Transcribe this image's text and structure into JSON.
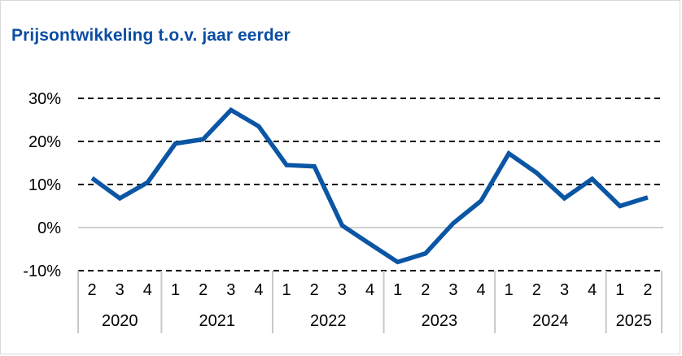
{
  "title": "Prijsontwikkeling t.o.v. jaar eerder",
  "chart_data": {
    "type": "line",
    "title": "Prijsontwikkeling t.o.v. jaar eerder",
    "xlabel": "",
    "ylabel": "",
    "ylim": [
      -10,
      30
    ],
    "yticks": [
      30,
      20,
      10,
      0,
      -10
    ],
    "ytick_labels": [
      "30%",
      "20%",
      "10%",
      "0%",
      "-10%"
    ],
    "grid": "dashed horizontal",
    "color": "#0b56a4",
    "quarters": [
      "2",
      "3",
      "4",
      "1",
      "2",
      "3",
      "4",
      "1",
      "2",
      "3",
      "4",
      "1",
      "2",
      "3",
      "4",
      "1",
      "2",
      "3",
      "4",
      "1",
      "2"
    ],
    "years": [
      {
        "label": "2020",
        "count": 3
      },
      {
        "label": "2021",
        "count": 4
      },
      {
        "label": "2022",
        "count": 4
      },
      {
        "label": "2023",
        "count": 4
      },
      {
        "label": "2024",
        "count": 4
      },
      {
        "label": "2025",
        "count": 2
      }
    ],
    "series": [
      {
        "values": [
          11.5,
          6.8,
          10.5,
          19.5,
          20.5,
          27.3,
          23.5,
          14.5,
          14.2,
          0.5,
          -3.8,
          -8.0,
          -6.0,
          1.0,
          6.2,
          17.2,
          12.7,
          6.8,
          11.3,
          5.0,
          7.0
        ]
      }
    ]
  }
}
